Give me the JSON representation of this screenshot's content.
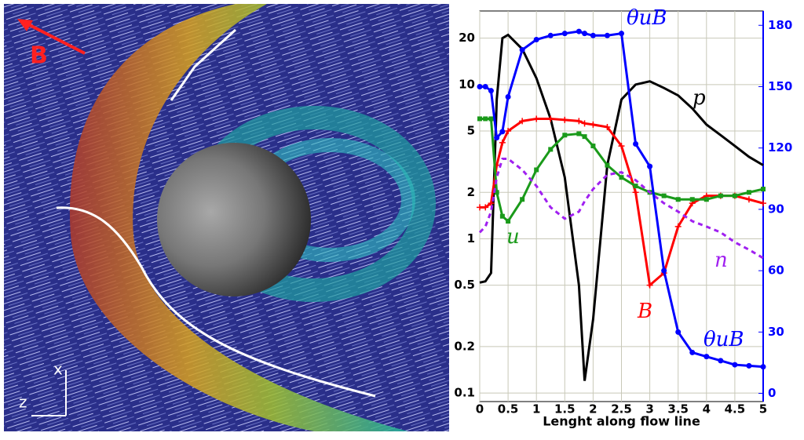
{
  "figure_labels": {
    "field": "B",
    "x_axis": "x",
    "z_axis": "z"
  },
  "chart_data": {
    "type": "line",
    "x_label": "Lenght along flow line",
    "x": [
      0,
      0.1,
      0.2,
      0.3,
      0.4,
      0.5,
      0.75,
      1,
      1.25,
      1.5,
      1.75,
      1.85,
      2,
      2.25,
      2.5,
      2.75,
      3,
      3.25,
      3.5,
      3.75,
      4,
      4.25,
      4.5,
      4.75,
      5
    ],
    "xlim": [
      0,
      5
    ],
    "xticks": [
      0,
      0.5,
      1,
      1.5,
      2,
      2.5,
      3,
      3.5,
      4,
      4.5,
      5
    ],
    "ylim": [
      0.088,
      30
    ],
    "yscale": "log",
    "yticks": [
      0.1,
      0.2,
      0.5,
      1,
      2,
      5,
      10,
      20
    ],
    "y2lim": [
      -4,
      187
    ],
    "y2ticks": [
      0,
      30,
      60,
      90,
      120,
      150,
      180
    ],
    "y2color": "#0000ff",
    "grid": true,
    "series": [
      {
        "name": "p",
        "color": "#000000",
        "marker": "none",
        "dash": false,
        "values": [
          0.52,
          0.53,
          0.6,
          8,
          20,
          21,
          17,
          11,
          6,
          2.5,
          0.5,
          0.12,
          0.3,
          3,
          8,
          10,
          10.5,
          9.5,
          8.5,
          7,
          5.5,
          4.7,
          4,
          3.4,
          3
        ]
      },
      {
        "name": "B",
        "color": "#ff0000",
        "marker": "plus",
        "dash": false,
        "values": [
          1.6,
          1.6,
          1.7,
          3,
          4.2,
          5,
          5.8,
          6,
          6,
          5.9,
          5.8,
          5.6,
          5.5,
          5.3,
          4,
          2,
          0.5,
          0.6,
          1.2,
          1.7,
          1.9,
          1.9,
          1.9,
          1.8,
          1.7
        ]
      },
      {
        "name": "u",
        "color": "#1a9a1a",
        "marker": "square",
        "dash": false,
        "values": [
          6,
          6,
          6,
          2,
          1.4,
          1.3,
          1.8,
          2.8,
          3.8,
          4.7,
          4.8,
          4.6,
          4,
          3,
          2.5,
          2.2,
          2,
          1.9,
          1.8,
          1.8,
          1.8,
          1.9,
          1.9,
          2,
          2.1
        ]
      },
      {
        "name": "n",
        "color": "#a020f0",
        "marker": "none",
        "dash": true,
        "values": [
          1.1,
          1.2,
          1.5,
          2.5,
          3.3,
          3.3,
          2.8,
          2.2,
          1.6,
          1.35,
          1.5,
          1.75,
          2.1,
          2.6,
          2.7,
          2.4,
          2,
          1.7,
          1.5,
          1.3,
          1.2,
          1.1,
          0.95,
          0.85,
          0.75
        ]
      },
      {
        "name": "θuB",
        "color": "#0000ff",
        "marker": "circle",
        "dash": false,
        "axis": "y2",
        "values": [
          150,
          150,
          148,
          125,
          128,
          145,
          168,
          173,
          175,
          176,
          177,
          176,
          175,
          175,
          176,
          122,
          111,
          60,
          30,
          20,
          18,
          16,
          14,
          13.5,
          13
        ]
      }
    ]
  }
}
